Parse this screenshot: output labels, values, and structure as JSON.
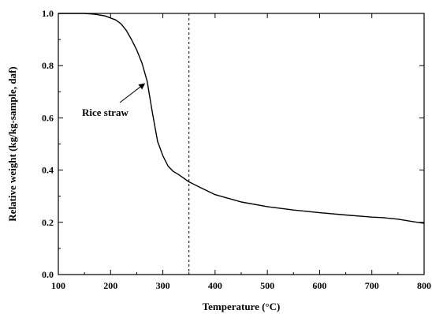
{
  "chart_data": {
    "type": "line",
    "title": "",
    "xlabel": "Temperature (°C)",
    "ylabel": "Relative weight (kg/kg-sample, daf)",
    "xlim": [
      100,
      800
    ],
    "ylim": [
      0.0,
      1.0
    ],
    "x_ticks": [
      100,
      200,
      300,
      400,
      500,
      600,
      700,
      800
    ],
    "y_ticks": [
      0.0,
      0.2,
      0.4,
      0.6,
      0.8,
      1.0
    ],
    "x_tick_labels": [
      "100",
      "200",
      "300",
      "400",
      "500",
      "600",
      "700",
      "800"
    ],
    "y_tick_labels": [
      "0.0",
      "0.2",
      "0.4",
      "0.6",
      "0.8",
      "1.0"
    ],
    "grid": false,
    "series": [
      {
        "name": "Rice straw",
        "x": [
          100,
          150,
          170,
          190,
          210,
          220,
          230,
          240,
          250,
          260,
          270,
          280,
          290,
          300,
          310,
          320,
          330,
          350,
          375,
          400,
          450,
          500,
          550,
          600,
          650,
          700,
          720,
          750,
          780,
          800
        ],
        "y": [
          1.0,
          1.0,
          0.997,
          0.99,
          0.975,
          0.96,
          0.935,
          0.9,
          0.86,
          0.81,
          0.74,
          0.62,
          0.51,
          0.455,
          0.415,
          0.395,
          0.383,
          0.355,
          0.33,
          0.306,
          0.278,
          0.26,
          0.247,
          0.237,
          0.228,
          0.22,
          0.218,
          0.212,
          0.202,
          0.196
        ]
      }
    ],
    "reference_lines": [
      {
        "orientation": "vertical",
        "x": 350,
        "style": "dashed"
      }
    ],
    "annotations": [
      {
        "text": "Rice straw",
        "arrow_to": {
          "x": 268,
          "y": 0.74
        }
      }
    ],
    "colors": {
      "line": "#000000",
      "axis": "#000000"
    }
  }
}
